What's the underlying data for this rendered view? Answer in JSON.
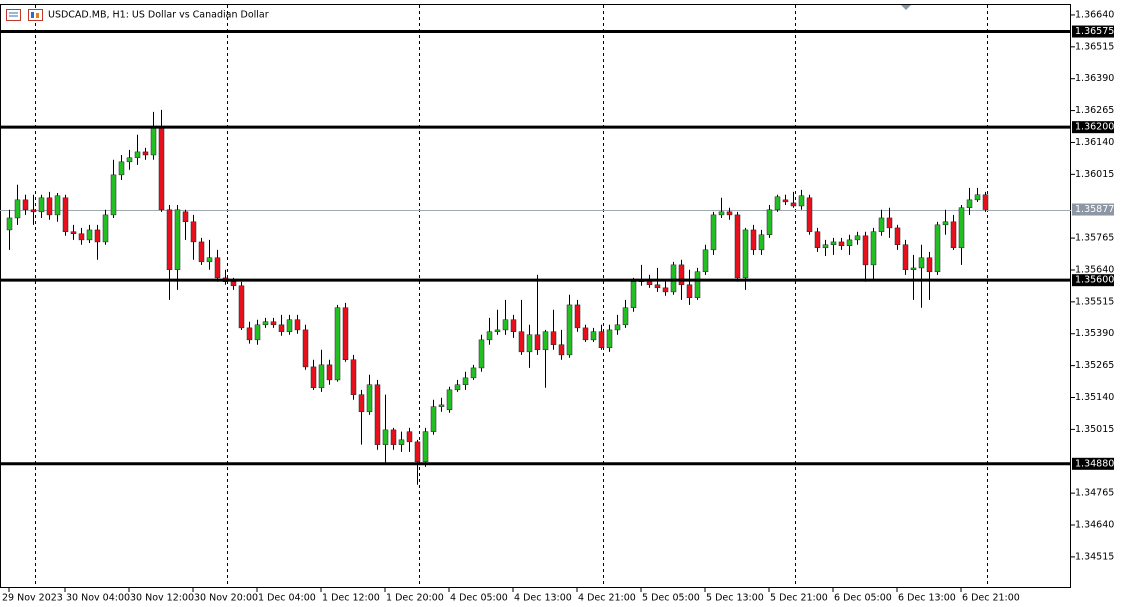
{
  "chart_data": {
    "type": "candlestick",
    "title": "USDCAD.MB, H1:  US Dollar vs Canadian Dollar",
    "up_color": "#22c022",
    "down_color": "#e8101c",
    "ylim": [
      1.34393,
      1.36679
    ],
    "yticks": [
      {
        "value": 1.3664,
        "label": "1.36640"
      },
      1.36515,
      {
        "value": 1.3639,
        "label": "1.36390"
      },
      1.36265,
      {
        "value": 1.3614,
        "label": "1.36140"
      },
      1.36015,
      1.35765,
      {
        "value": 1.3564,
        "label": "1.35640"
      },
      1.35515,
      {
        "value": 1.3539,
        "label": "1.35390"
      },
      1.35265,
      {
        "value": 1.3514,
        "label": "1.35140"
      },
      1.35015,
      1.34765,
      {
        "value": 1.3464,
        "label": "1.34640"
      },
      1.34515
    ],
    "levels": [
      1.36575,
      {
        "value": 1.362,
        "label": "1.36200"
      },
      {
        "value": 1.356,
        "label": "1.35600"
      },
      {
        "value": 1.3488,
        "label": "1.34880"
      }
    ],
    "last_price": 1.35877,
    "categories": [
      "29 Nov 2023",
      null,
      null,
      null,
      null,
      null,
      null,
      "30 Nov 04:00",
      null,
      null,
      null,
      null,
      null,
      null,
      null,
      "30 Nov 12:00",
      null,
      null,
      null,
      null,
      null,
      null,
      null,
      "30 Nov 20:00",
      null,
      null,
      null,
      null,
      null,
      null,
      null,
      "1 Dec 04:00",
      null,
      null,
      null,
      null,
      null,
      null,
      null,
      "1 Dec 12:00",
      null,
      null,
      null,
      null,
      null,
      null,
      null,
      "1 Dec 20:00",
      null,
      null,
      null,
      null,
      null,
      null,
      null,
      "4 Dec 05:00",
      null,
      null,
      null,
      null,
      null,
      null,
      null,
      "4 Dec 13:00",
      null,
      null,
      null,
      null,
      null,
      null,
      null,
      "4 Dec 21:00",
      null,
      null,
      null,
      null,
      null,
      null,
      null,
      "5 Dec 05:00",
      null,
      null,
      null,
      null,
      null,
      null,
      null,
      "5 Dec 13:00",
      null,
      null,
      null,
      null,
      null,
      null,
      null,
      "5 Dec 21:00",
      null,
      null,
      null,
      null,
      null,
      null,
      null,
      "6 Dec 05:00",
      null,
      null,
      null,
      null,
      null,
      null,
      null,
      "6 Dec 13:00",
      null,
      null,
      null,
      null,
      null,
      null,
      null,
      "6 Dec 21:00",
      null,
      null,
      null
    ],
    "open": [
      1.35797,
      1.35844,
      1.35915,
      1.35876,
      1.35868,
      1.35923,
      1.35856,
      1.35923,
      1.3579,
      1.35782,
      1.35758,
      1.35797,
      1.3575,
      1.35856,
      1.36013,
      1.36064,
      1.3608,
      1.36103,
      1.36091,
      1.36201,
      1.35876,
      1.35641,
      1.35868,
      1.35829,
      1.3575,
      1.35672,
      1.35688,
      1.35609,
      1.35594,
      1.35578,
      1.35413,
      1.35366,
      1.35425,
      1.35437,
      1.35425,
      1.35398,
      1.35445,
      1.35405,
      1.3526,
      1.35178,
      1.35268,
      1.35209,
      1.35492,
      1.35288,
      1.35151,
      1.35084,
      1.3519,
      1.34955,
      1.35013,
      1.34955,
      1.35006,
      1.34966,
      1.34888,
      1.35006,
      1.35104,
      1.35092,
      1.3517,
      1.3519,
      1.35217,
      1.35256,
      1.35366,
      1.35398,
      1.35405,
      1.35445,
      1.35398,
      1.35319,
      1.35386,
      1.35327,
      1.35398,
      1.35347,
      1.35307,
      1.35503,
      1.35413,
      1.35366,
      1.35398,
      1.35335,
      1.35405,
      1.35425,
      1.35492,
      1.35594,
      1.35601,
      1.35582,
      1.3557,
      1.35554,
      1.3566,
      1.35582,
      1.35531,
      1.35633,
      1.35719,
      1.35856,
      1.35868,
      1.35856,
      1.35609,
      1.35797,
      1.35719,
      1.35778,
      1.35876,
      1.35915,
      1.35903,
      1.35891,
      1.35923,
      1.3579,
      1.35727,
      1.35739,
      1.3575,
      1.35735,
      1.35758,
      1.35774,
      1.3566,
      1.3579,
      1.35844,
      1.35805,
      1.35739,
      1.35641,
      1.35648,
      1.35688,
      1.35633,
      1.35817,
      1.35829,
      1.35727,
      1.35884,
      1.35915,
      1.35935
    ],
    "high": [
      1.35876,
      1.35974,
      1.35935,
      1.35935,
      1.35935,
      1.35946,
      1.35942,
      1.35935,
      1.35817,
      1.35805,
      1.35817,
      1.35817,
      1.35876,
      1.36072,
      1.36091,
      1.36111,
      1.3617,
      1.36119,
      1.3626,
      1.36268,
      1.35895,
      1.35895,
      1.35876,
      1.35856,
      1.35766,
      1.35758,
      1.35719,
      1.35641,
      1.35609,
      1.35594,
      1.35437,
      1.35445,
      1.35452,
      1.35452,
      1.35464,
      1.35464,
      1.35464,
      1.35425,
      1.35288,
      1.35327,
      1.35288,
      1.35503,
      1.35511,
      1.35307,
      1.3517,
      1.35229,
      1.35209,
      1.35151,
      1.35021,
      1.35006,
      1.35021,
      1.34974,
      1.35021,
      1.35131,
      1.35139,
      1.35182,
      1.35209,
      1.35241,
      1.35268,
      1.35386,
      1.35452,
      1.35484,
      1.35523,
      1.35464,
      1.35523,
      1.35425,
      1.35621,
      1.35405,
      1.35484,
      1.35405,
      1.35543,
      1.35523,
      1.35425,
      1.35413,
      1.35425,
      1.35425,
      1.35464,
      1.35523,
      1.35609,
      1.3566,
      1.35621,
      1.35648,
      1.35601,
      1.35672,
      1.3568,
      1.35641,
      1.35648,
      1.35739,
      1.35868,
      1.35923,
      1.35884,
      1.35868,
      1.35805,
      1.35817,
      1.35797,
      1.35895,
      1.35935,
      1.35935,
      1.35946,
      1.35954,
      1.35935,
      1.35805,
      1.35758,
      1.35766,
      1.35766,
      1.35778,
      1.3579,
      1.3579,
      1.35805,
      1.35876,
      1.35884,
      1.35817,
      1.35758,
      1.35699,
      1.35739,
      1.35711,
      1.35829,
      1.35876,
      1.35856,
      1.35895,
      1.35962,
      1.35962,
      1.35946
    ],
    "low": [
      1.35719,
      1.35817,
      1.35856,
      1.35817,
      1.35844,
      1.35837,
      1.35829,
      1.35774,
      1.35758,
      1.35739,
      1.35746,
      1.3568,
      1.35739,
      1.35844,
      1.35993,
      1.36033,
      1.36052,
      1.36072,
      1.36072,
      1.35868,
      1.35523,
      1.35562,
      1.35758,
      1.3568,
      1.3566,
      1.35641,
      1.35594,
      1.35582,
      1.35562,
      1.35405,
      1.35351,
      1.35347,
      1.35413,
      1.35413,
      1.35382,
      1.35386,
      1.3539,
      1.35249,
      1.3517,
      1.35162,
      1.3519,
      1.35202,
      1.3528,
      1.35131,
      1.34955,
      1.35072,
      1.34935,
      1.34884,
      1.34935,
      1.34927,
      1.34927,
      1.34798,
      1.34868,
      1.34994,
      1.35084,
      1.3508,
      1.35162,
      1.3517,
      1.35209,
      1.35241,
      1.35347,
      1.35386,
      1.35386,
      1.35374,
      1.35307,
      1.35256,
      1.35307,
      1.35178,
      1.35327,
      1.35288,
      1.35296,
      1.35398,
      1.35358,
      1.35358,
      1.35327,
      1.35319,
      1.35386,
      1.35413,
      1.35476,
      1.35578,
      1.3557,
      1.35554,
      1.35539,
      1.35543,
      1.35523,
      1.35503,
      1.35523,
      1.35621,
      1.35699,
      1.35844,
      1.35837,
      1.35594,
      1.35562,
      1.35699,
      1.35699,
      1.35766,
      1.35868,
      1.35895,
      1.35884,
      1.35876,
      1.35778,
      1.35711,
      1.35695,
      1.35699,
      1.35719,
      1.35699,
      1.35739,
      1.35594,
      1.35601,
      1.35774,
      1.35766,
      1.35719,
      1.35621,
      1.35523,
      1.35492,
      1.35523,
      1.35621,
      1.35778,
      1.35719,
      1.3566,
      1.35856,
      1.35907,
      1.35868
    ],
    "close": [
      1.35844,
      1.35915,
      1.35876,
      1.35868,
      1.35923,
      1.35856,
      1.35931,
      1.3579,
      1.35782,
      1.35758,
      1.35797,
      1.3575,
      1.35856,
      1.36013,
      1.36064,
      1.3608,
      1.36103,
      1.36091,
      1.36201,
      1.35876,
      1.35641,
      1.35876,
      1.35829,
      1.3575,
      1.35672,
      1.35688,
      1.35609,
      1.35594,
      1.35578,
      1.35413,
      1.35366,
      1.35425,
      1.35437,
      1.35425,
      1.35398,
      1.35445,
      1.35405,
      1.3526,
      1.35178,
      1.35268,
      1.35209,
      1.35492,
      1.35288,
      1.35151,
      1.35084,
      1.3519,
      1.34955,
      1.35013,
      1.34955,
      1.34974,
      1.34966,
      1.34888,
      1.35006,
      1.35104,
      1.35111,
      1.3517,
      1.3519,
      1.35217,
      1.35256,
      1.35366,
      1.35398,
      1.35405,
      1.35445,
      1.35398,
      1.35319,
      1.35386,
      1.35327,
      1.35398,
      1.35347,
      1.35307,
      1.35503,
      1.35413,
      1.35366,
      1.35398,
      1.35335,
      1.35405,
      1.35425,
      1.35492,
      1.35594,
      1.35601,
      1.35582,
      1.3557,
      1.35554,
      1.3566,
      1.35582,
      1.35531,
      1.35633,
      1.35719,
      1.35856,
      1.35868,
      1.35856,
      1.35609,
      1.35797,
      1.35719,
      1.35778,
      1.35876,
      1.35927,
      1.35907,
      1.35891,
      1.35931,
      1.3579,
      1.35727,
      1.35739,
      1.3575,
      1.35735,
      1.35758,
      1.35774,
      1.3566,
      1.3579,
      1.35844,
      1.35805,
      1.35739,
      1.35641,
      1.35648,
      1.35688,
      1.35633,
      1.35817,
      1.35829,
      1.35727,
      1.35884,
      1.35915,
      1.35935,
      1.35877
    ]
  }
}
